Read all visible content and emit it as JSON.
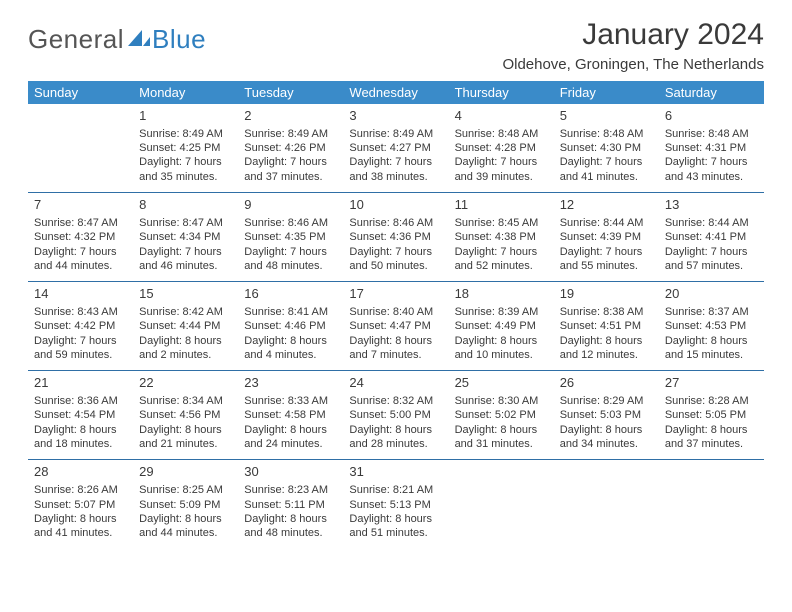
{
  "brand": {
    "part1": "General",
    "part2": "Blue"
  },
  "title": "January 2024",
  "location": "Oldehove, Groningen, The Netherlands",
  "colors": {
    "header_bg": "#3a8bc9",
    "header_text": "#ffffff",
    "row_border": "#2f6fa6",
    "text": "#3a3a3a",
    "brand_blue": "#2f7fbf",
    "background": "#ffffff"
  },
  "typography": {
    "title_fontsize": 30,
    "location_fontsize": 15,
    "dayheader_fontsize": 13,
    "daynum_fontsize": 13,
    "cell_fontsize": 11
  },
  "layout": {
    "columns": 7,
    "rows": 5,
    "first_day_column_index": 1
  },
  "day_headers": [
    "Sunday",
    "Monday",
    "Tuesday",
    "Wednesday",
    "Thursday",
    "Friday",
    "Saturday"
  ],
  "days": [
    {
      "n": 1,
      "sunrise": "8:49 AM",
      "sunset": "4:25 PM",
      "daylight": "7 hours and 35 minutes."
    },
    {
      "n": 2,
      "sunrise": "8:49 AM",
      "sunset": "4:26 PM",
      "daylight": "7 hours and 37 minutes."
    },
    {
      "n": 3,
      "sunrise": "8:49 AM",
      "sunset": "4:27 PM",
      "daylight": "7 hours and 38 minutes."
    },
    {
      "n": 4,
      "sunrise": "8:48 AM",
      "sunset": "4:28 PM",
      "daylight": "7 hours and 39 minutes."
    },
    {
      "n": 5,
      "sunrise": "8:48 AM",
      "sunset": "4:30 PM",
      "daylight": "7 hours and 41 minutes."
    },
    {
      "n": 6,
      "sunrise": "8:48 AM",
      "sunset": "4:31 PM",
      "daylight": "7 hours and 43 minutes."
    },
    {
      "n": 7,
      "sunrise": "8:47 AM",
      "sunset": "4:32 PM",
      "daylight": "7 hours and 44 minutes."
    },
    {
      "n": 8,
      "sunrise": "8:47 AM",
      "sunset": "4:34 PM",
      "daylight": "7 hours and 46 minutes."
    },
    {
      "n": 9,
      "sunrise": "8:46 AM",
      "sunset": "4:35 PM",
      "daylight": "7 hours and 48 minutes."
    },
    {
      "n": 10,
      "sunrise": "8:46 AM",
      "sunset": "4:36 PM",
      "daylight": "7 hours and 50 minutes."
    },
    {
      "n": 11,
      "sunrise": "8:45 AM",
      "sunset": "4:38 PM",
      "daylight": "7 hours and 52 minutes."
    },
    {
      "n": 12,
      "sunrise": "8:44 AM",
      "sunset": "4:39 PM",
      "daylight": "7 hours and 55 minutes."
    },
    {
      "n": 13,
      "sunrise": "8:44 AM",
      "sunset": "4:41 PM",
      "daylight": "7 hours and 57 minutes."
    },
    {
      "n": 14,
      "sunrise": "8:43 AM",
      "sunset": "4:42 PM",
      "daylight": "7 hours and 59 minutes."
    },
    {
      "n": 15,
      "sunrise": "8:42 AM",
      "sunset": "4:44 PM",
      "daylight": "8 hours and 2 minutes."
    },
    {
      "n": 16,
      "sunrise": "8:41 AM",
      "sunset": "4:46 PM",
      "daylight": "8 hours and 4 minutes."
    },
    {
      "n": 17,
      "sunrise": "8:40 AM",
      "sunset": "4:47 PM",
      "daylight": "8 hours and 7 minutes."
    },
    {
      "n": 18,
      "sunrise": "8:39 AM",
      "sunset": "4:49 PM",
      "daylight": "8 hours and 10 minutes."
    },
    {
      "n": 19,
      "sunrise": "8:38 AM",
      "sunset": "4:51 PM",
      "daylight": "8 hours and 12 minutes."
    },
    {
      "n": 20,
      "sunrise": "8:37 AM",
      "sunset": "4:53 PM",
      "daylight": "8 hours and 15 minutes."
    },
    {
      "n": 21,
      "sunrise": "8:36 AM",
      "sunset": "4:54 PM",
      "daylight": "8 hours and 18 minutes."
    },
    {
      "n": 22,
      "sunrise": "8:34 AM",
      "sunset": "4:56 PM",
      "daylight": "8 hours and 21 minutes."
    },
    {
      "n": 23,
      "sunrise": "8:33 AM",
      "sunset": "4:58 PM",
      "daylight": "8 hours and 24 minutes."
    },
    {
      "n": 24,
      "sunrise": "8:32 AM",
      "sunset": "5:00 PM",
      "daylight": "8 hours and 28 minutes."
    },
    {
      "n": 25,
      "sunrise": "8:30 AM",
      "sunset": "5:02 PM",
      "daylight": "8 hours and 31 minutes."
    },
    {
      "n": 26,
      "sunrise": "8:29 AM",
      "sunset": "5:03 PM",
      "daylight": "8 hours and 34 minutes."
    },
    {
      "n": 27,
      "sunrise": "8:28 AM",
      "sunset": "5:05 PM",
      "daylight": "8 hours and 37 minutes."
    },
    {
      "n": 28,
      "sunrise": "8:26 AM",
      "sunset": "5:07 PM",
      "daylight": "8 hours and 41 minutes."
    },
    {
      "n": 29,
      "sunrise": "8:25 AM",
      "sunset": "5:09 PM",
      "daylight": "8 hours and 44 minutes."
    },
    {
      "n": 30,
      "sunrise": "8:23 AM",
      "sunset": "5:11 PM",
      "daylight": "8 hours and 48 minutes."
    },
    {
      "n": 31,
      "sunrise": "8:21 AM",
      "sunset": "5:13 PM",
      "daylight": "8 hours and 51 minutes."
    }
  ]
}
